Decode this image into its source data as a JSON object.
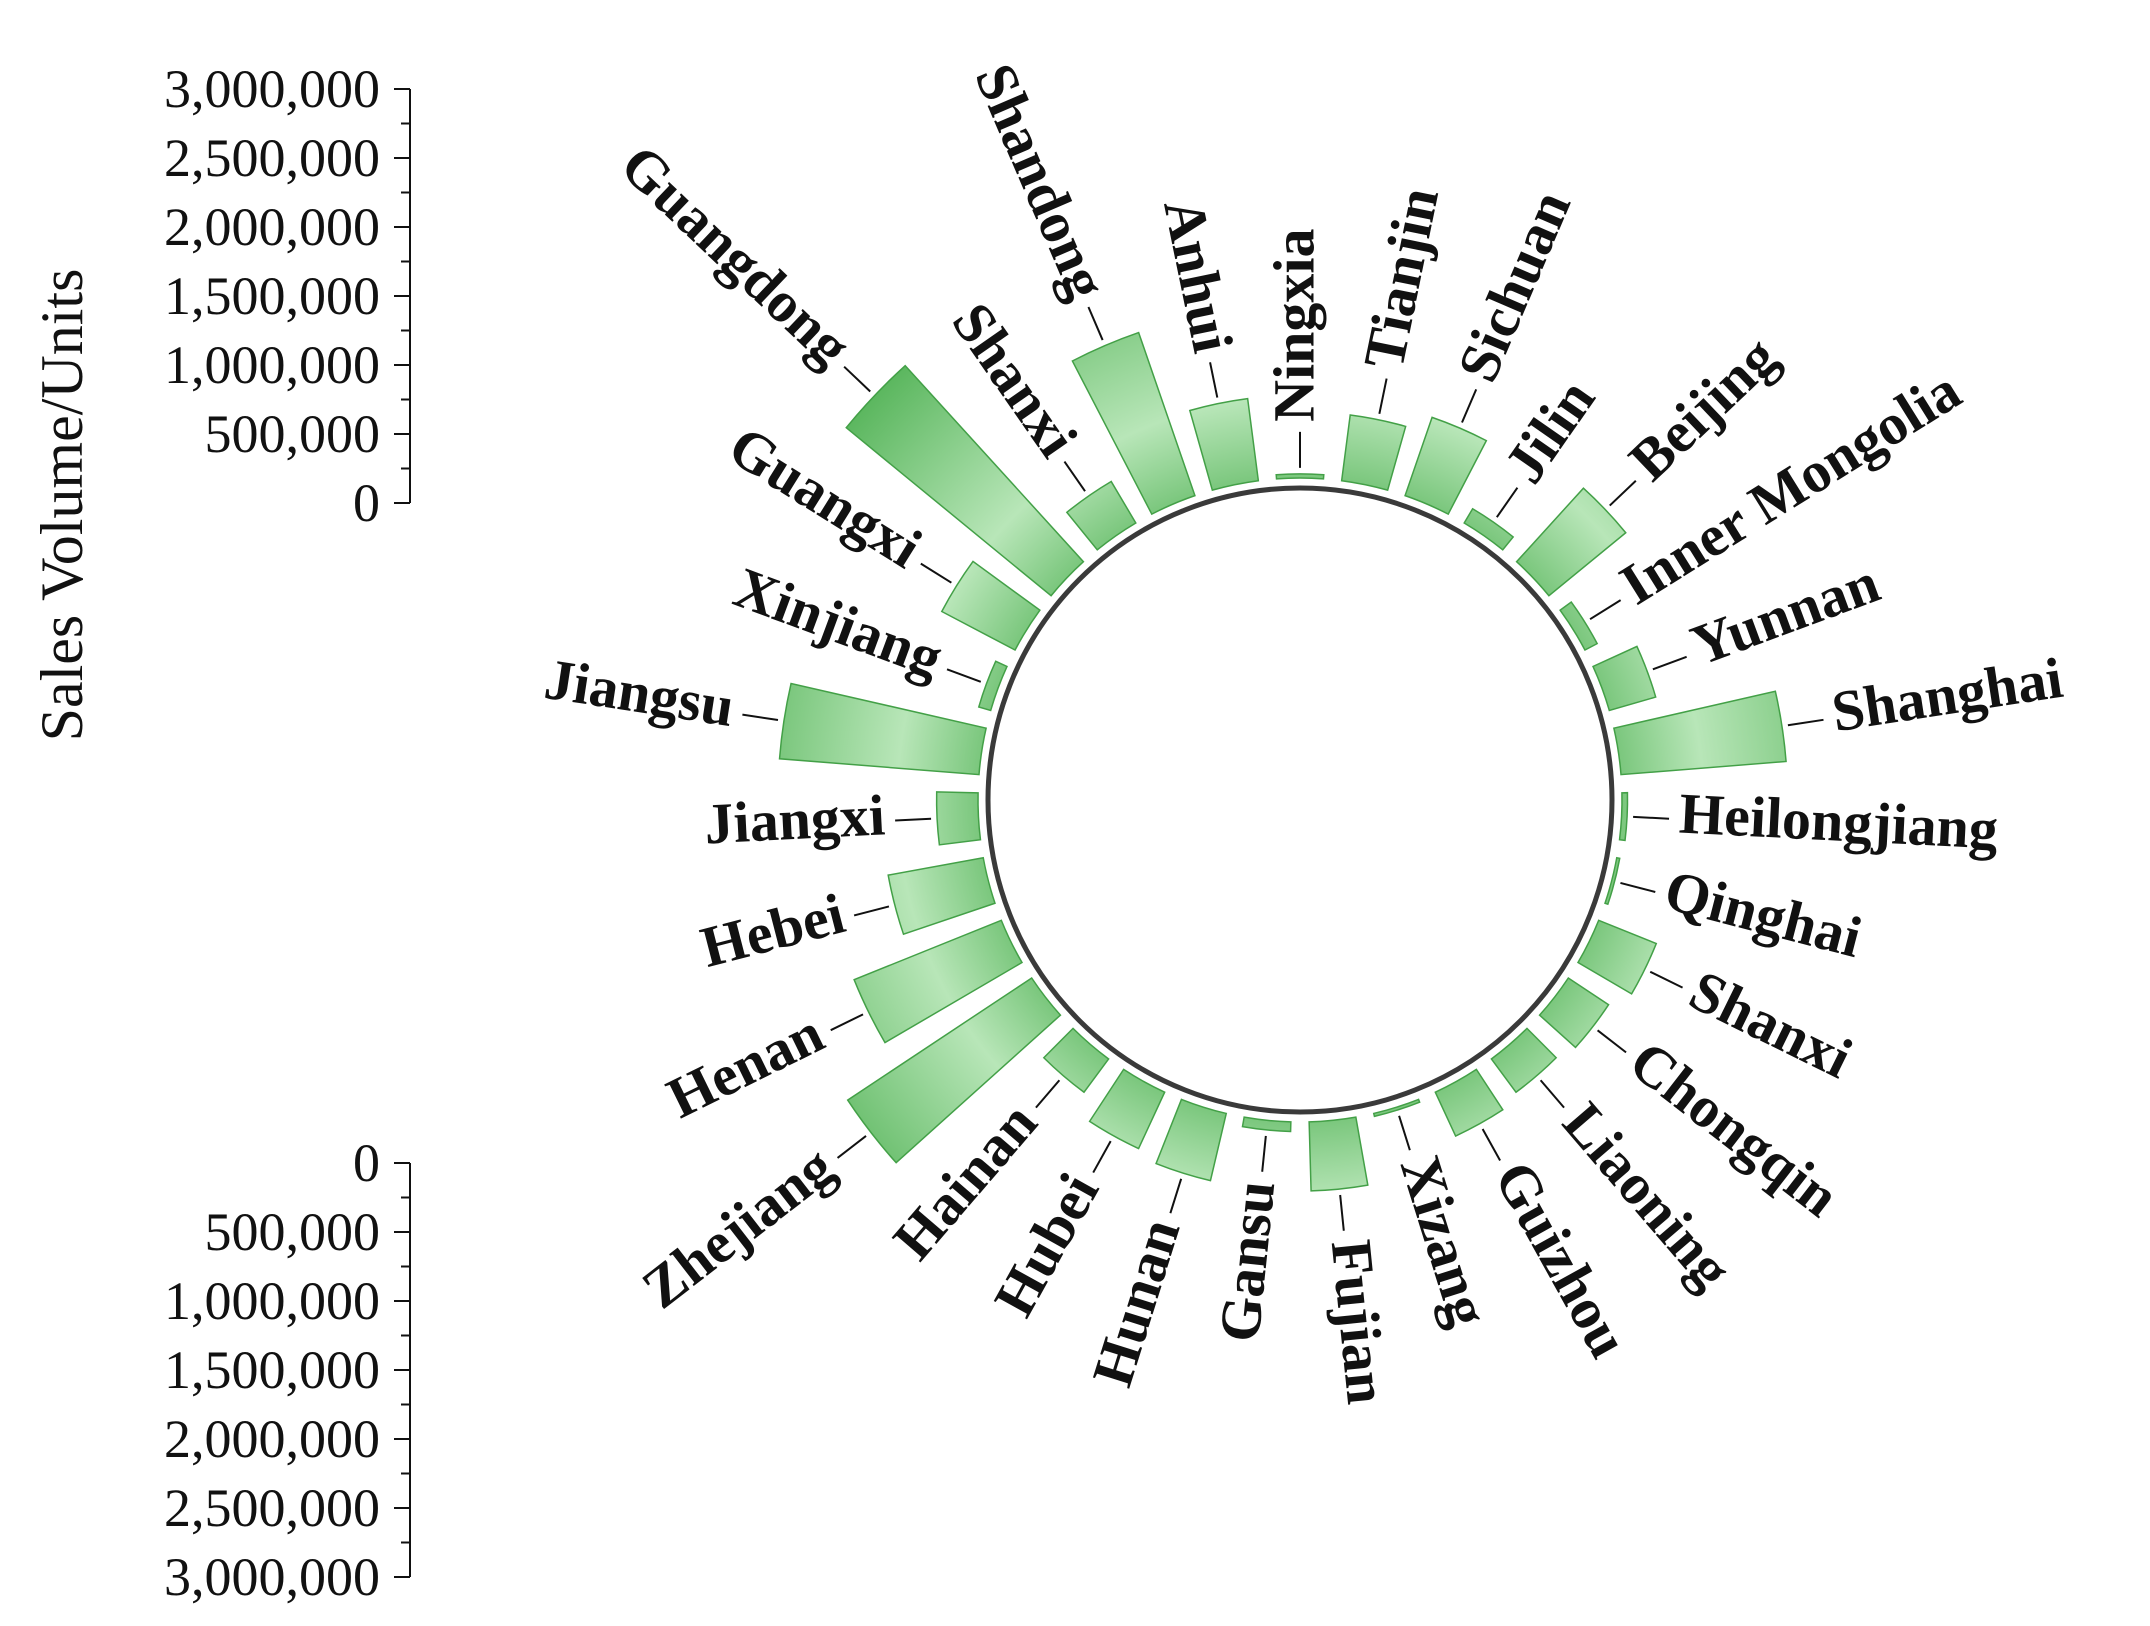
{
  "chart_data": {
    "type": "radial-bar",
    "ylabel": "Sales Volume/Units",
    "yticks": [
      "0",
      "500,000",
      "1,000,000",
      "1,500,000",
      "2,000,000",
      "2,500,000",
      "3,000,000"
    ],
    "ytick_values": [
      0,
      500000,
      1000000,
      1500000,
      2000000,
      2500000,
      3000000
    ],
    "ylim": [
      0,
      3000000
    ],
    "bar_color": "#4CAF50",
    "bar_highlight": "#b8e6b8",
    "circle_color": "#3a3a3a",
    "categories": [
      "Ningxia",
      "Tianjin",
      "Sichuan",
      "Jilin",
      "Beijing",
      "Inner Mongolia",
      "Yunnan",
      "Shanghai",
      "Heilongjiang",
      "Qinghai",
      "Shanxi",
      "Chongqin",
      "Liaoning",
      "Guizhou",
      "Xizang",
      "Fujian",
      "Gansu",
      "Hunan",
      "Hubei",
      "Hainan",
      "Zhejiang",
      "Henan",
      "Hebei",
      "Jiangxi",
      "Jiangsu",
      "Xinjiang",
      "Guangxi",
      "Guangdong",
      "Shanxi",
      "Shandong",
      "Anhui"
    ],
    "values": [
      30000,
      480000,
      600000,
      120000,
      720000,
      100000,
      350000,
      1200000,
      40000,
      20000,
      450000,
      350000,
      300000,
      350000,
      10000,
      500000,
      70000,
      500000,
      450000,
      300000,
      1600000,
      1150000,
      700000,
      300000,
      1450000,
      90000,
      600000,
      1920000,
      350000,
      1250000,
      600000
    ]
  }
}
